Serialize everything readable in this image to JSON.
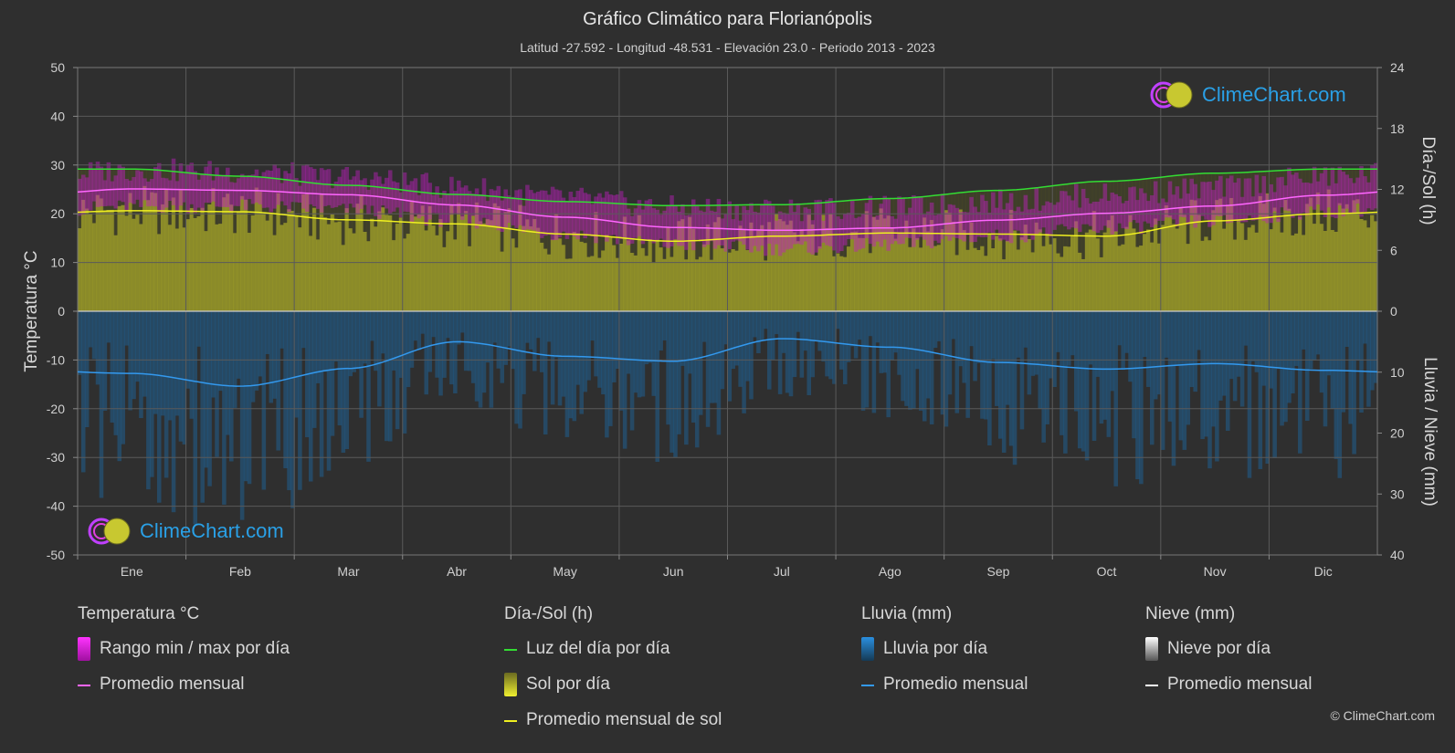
{
  "header": {
    "title": "Gráfico Climático para Florianópolis",
    "subtitle": "Latitud -27.592 - Longitud -48.531 - Elevación 23.0 - Periodo 2013 - 2023"
  },
  "axes": {
    "left_title": "Temperatura °C",
    "right_top_title": "Día-/Sol (h)",
    "right_bottom_title": "Lluvia / Nieve (mm)"
  },
  "logo_text": "ClimeChart.com",
  "copyright": "© ClimeChart.com",
  "legend": {
    "temperature": {
      "title": "Temperatura °C",
      "range": "Rango min / max por día",
      "avg": "Promedio mensual"
    },
    "sun": {
      "title": "Día-/Sol (h)",
      "daylight": "Luz del día por día",
      "sun": "Sol por día",
      "avg": "Promedio mensual de sol"
    },
    "rain": {
      "title": "Lluvia (mm)",
      "rain": "Lluvia por día",
      "avg": "Promedio mensual"
    },
    "snow": {
      "title": "Nieve (mm)",
      "snow": "Nieve por día",
      "avg": "Promedio mensual"
    }
  },
  "colors": {
    "background": "#2f2f2f",
    "temp_range": "#c21fc2",
    "temp_avg": "#ff66ff",
    "daylight": "#33dd33",
    "sun_fill": "#a5a52a",
    "sun_avg": "#f0f020",
    "rain_fill": "#1f5f8f",
    "rain_avg": "#3399ee",
    "snow_avg": "#ffffff"
  },
  "chart_data": {
    "type": "line",
    "categories": [
      "Ene",
      "Feb",
      "Mar",
      "Abr",
      "May",
      "Jun",
      "Jul",
      "Ago",
      "Sep",
      "Oct",
      "Nov",
      "Dic"
    ],
    "y_left": {
      "label": "Temperatura °C",
      "range": [
        -50,
        50
      ],
      "ticks": [
        50,
        40,
        30,
        20,
        10,
        0,
        -10,
        -20,
        -30,
        -40,
        -50
      ]
    },
    "y_right_top": {
      "label": "Día-/Sol (h)",
      "range": [
        0,
        24
      ],
      "ticks": [
        24,
        18,
        12,
        6,
        0
      ]
    },
    "y_right_bottom": {
      "label": "Lluvia / Nieve (mm)",
      "range": [
        0,
        40
      ],
      "ticks": [
        0,
        10,
        20,
        30,
        40
      ]
    },
    "series": [
      {
        "name": "Luz del día por día",
        "axis": "sun_h",
        "values": [
          14.0,
          13.3,
          12.4,
          11.5,
          10.8,
          10.4,
          10.5,
          11.1,
          11.9,
          12.8,
          13.6,
          14.0
        ]
      },
      {
        "name": "Promedio mensual de sol",
        "axis": "sun_h",
        "values": [
          9.9,
          9.8,
          9.0,
          8.6,
          7.6,
          6.9,
          7.4,
          7.7,
          7.6,
          7.4,
          8.9,
          9.6
        ]
      },
      {
        "name": "Promedio mensual",
        "axis": "temp_c",
        "values": [
          25.1,
          24.8,
          23.9,
          21.8,
          19.3,
          17.2,
          16.6,
          17.1,
          18.7,
          20.1,
          21.6,
          23.8
        ]
      },
      {
        "name": "Rango min / max por día",
        "axis": "temp_c",
        "min": [
          21.5,
          21.6,
          20.8,
          18.6,
          15.8,
          13.6,
          12.8,
          13.6,
          15.4,
          17.0,
          18.4,
          20.5
        ],
        "max": [
          29.0,
          28.6,
          27.5,
          25.5,
          23.2,
          21.3,
          20.9,
          21.2,
          22.6,
          23.9,
          25.3,
          27.6
        ]
      },
      {
        "name": "Promedio mensual",
        "axis": "rain_mm",
        "values": [
          10.2,
          12.3,
          9.4,
          5.0,
          7.4,
          8.2,
          4.5,
          5.9,
          8.4,
          9.5,
          8.6,
          9.7
        ]
      }
    ]
  }
}
